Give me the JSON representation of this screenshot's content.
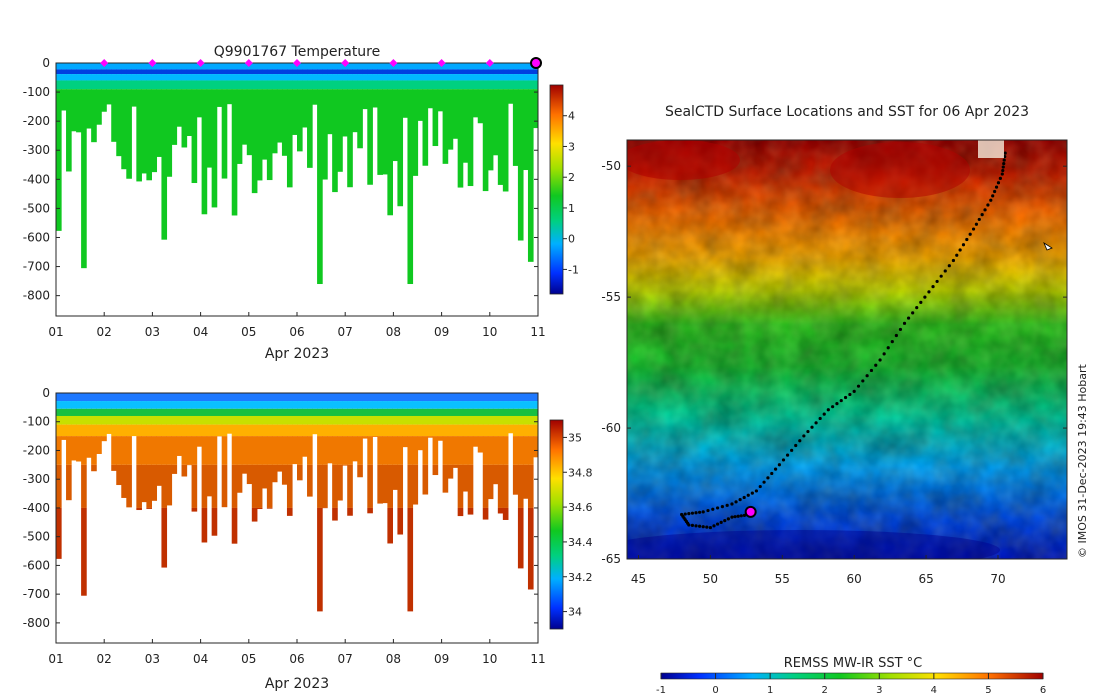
{
  "chart_data": [
    {
      "type": "heatmap",
      "title": "Q9901767  Temperature",
      "variable": "temperature",
      "xlabel": "Apr 2023",
      "x_ticks": [
        "01",
        "02",
        "03",
        "04",
        "05",
        "06",
        "07",
        "08",
        "09",
        "10",
        "11"
      ],
      "x_range": [
        1,
        11
      ],
      "ylim": [
        -870,
        0
      ],
      "y_ticks": [
        0,
        -100,
        -200,
        -300,
        -400,
        -500,
        -600,
        -700,
        -800
      ],
      "y_tick_labels": [
        "0",
        "-100",
        "-200",
        "-300",
        "-400",
        "-500",
        "-600",
        "-700",
        "-800"
      ],
      "colorbar_ticks": [
        4,
        3,
        2,
        1,
        0,
        -1
      ],
      "colorbar_tick_labels": [
        "4",
        "3",
        "2",
        "1",
        "0",
        "-1"
      ],
      "colorbar_range": [
        -1.8,
        5
      ],
      "surface_markers_days": [
        2,
        3,
        4,
        5,
        6,
        7,
        8,
        9,
        10
      ],
      "current_marker_day": 11,
      "colors": {
        "marker": "#ff00ff",
        "current_marker": "#ff00ff"
      }
    },
    {
      "type": "heatmap",
      "title": "",
      "variable": "salinity",
      "xlabel": "Apr 2023",
      "x_ticks": [
        "01",
        "02",
        "03",
        "04",
        "05",
        "06",
        "07",
        "08",
        "09",
        "10",
        "11"
      ],
      "x_range": [
        1,
        11
      ],
      "ylim": [
        -870,
        0
      ],
      "y_ticks": [
        0,
        -100,
        -200,
        -300,
        -400,
        -500,
        -600,
        -700,
        -800
      ],
      "y_tick_labels": [
        "0",
        "-100",
        "-200",
        "-300",
        "-400",
        "-500",
        "-600",
        "-700",
        "-800"
      ],
      "colorbar_ticks": [
        35,
        34.8,
        34.6,
        34.4,
        34.2,
        34
      ],
      "colorbar_tick_labels": [
        "35",
        "34.8",
        "34.6",
        "34.4",
        "34.2",
        "34"
      ],
      "colorbar_range": [
        33.9,
        35.1
      ]
    },
    {
      "type": "heatmap",
      "title": "SealCTD Surface Locations and SST for 06 Apr 2023",
      "xlabel": "",
      "ylabel": "",
      "x_ticks": [
        45,
        50,
        55,
        60,
        65,
        70
      ],
      "x_tick_labels": [
        "45",
        "50",
        "55",
        "60",
        "65",
        "70"
      ],
      "y_ticks": [
        -50,
        -55,
        -60,
        -65
      ],
      "y_tick_labels": [
        "-50",
        "-55",
        "-60",
        "-65"
      ],
      "xlim": [
        44.2,
        74.8
      ],
      "ylim": [
        -65,
        -49
      ],
      "colorbar_label": "REMSS MW-IR SST °C",
      "colorbar_ticks": [
        -1,
        0,
        1,
        2,
        3,
        4,
        5,
        6
      ],
      "colorbar_tick_labels": [
        "-1",
        "0",
        "1",
        "2",
        "3",
        "4",
        "5",
        "6"
      ],
      "track": [
        [
          70.5,
          -49.5
        ],
        [
          70.3,
          -50.3
        ],
        [
          69.5,
          -51.3
        ],
        [
          68.3,
          -52.4
        ],
        [
          66.9,
          -53.6
        ],
        [
          65.2,
          -54.8
        ],
        [
          63.5,
          -56.0
        ],
        [
          61.8,
          -57.4
        ],
        [
          60.0,
          -58.6
        ],
        [
          58.2,
          -59.3
        ],
        [
          56.5,
          -60.3
        ],
        [
          54.8,
          -61.4
        ],
        [
          53.2,
          -62.4
        ],
        [
          51.5,
          -62.9
        ],
        [
          49.5,
          -63.2
        ],
        [
          48.0,
          -63.3
        ],
        [
          48.5,
          -63.7
        ],
        [
          50.0,
          -63.8
        ],
        [
          51.5,
          -63.4
        ],
        [
          52.8,
          -63.3
        ]
      ],
      "current_position": [
        52.8,
        -63.2
      ]
    }
  ],
  "copyright": "© IMOS 31-Dec-2023 19:43 Hobart"
}
